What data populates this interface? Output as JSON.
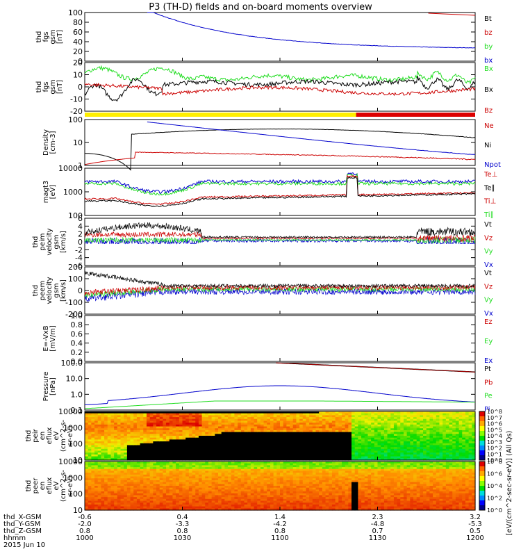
{
  "title": "P3 (TH-D) fields and on-board moments overview",
  "colors": {
    "black": "#000000",
    "red": "#cc0000",
    "green": "#22dd22",
    "blue": "#0000cc",
    "yellow": "#ffee00",
    "barred": "#dd0000"
  },
  "time_axis": {
    "row_labels": [
      "thd_X-GSM",
      "thd_Y-GSM",
      "thd_Z-GSM",
      "hhmm",
      "2015 Jun 10"
    ],
    "ticks": [
      {
        "x": "-0.6",
        "y": "-2.0",
        "z": "0.8",
        "hhmm": "1000"
      },
      {
        "x": "0.4",
        "y": "-3.3",
        "z": "0.8",
        "hhmm": "1030"
      },
      {
        "x": "1.4",
        "y": "-4.2",
        "z": "0.8",
        "hhmm": "1100"
      },
      {
        "x": "2.3",
        "y": "-4.8",
        "z": "0.7",
        "hhmm": "1130"
      },
      {
        "x": "3.2",
        "y": "-5.3",
        "z": "0.5",
        "hhmm": "1200"
      }
    ]
  },
  "colorbar_label": "[eV/(cm^2-sec-sr-eV)] (All Qs)",
  "colorbar_ticks": [
    "10^8",
    "10^7",
    "10^6",
    "10^5",
    "10^4",
    "10^3",
    "10^2",
    "10^1",
    "10^0"
  ],
  "colorbar_ticks2": [
    "10^8",
    "10^6",
    "10^4",
    "10^2",
    "10^0"
  ],
  "chart_data": [
    {
      "type": "line",
      "id": "fgs_gsm_mag",
      "ylabel": [
        "thd",
        "fgs",
        "gsm",
        "[nT]"
      ],
      "yticks": [
        "100",
        "80",
        "60",
        "40",
        "20",
        "0"
      ],
      "ylim": [
        0,
        100
      ],
      "legend": [
        {
          "name": "Bt",
          "color": "black"
        },
        {
          "name": "bz",
          "color": "red"
        },
        {
          "name": "by",
          "color": "green"
        },
        {
          "name": "bx",
          "color": "blue"
        }
      ]
    },
    {
      "type": "line",
      "id": "fgs_gsm_comp",
      "ylabel": [
        "thd",
        "fgs",
        "gsm",
        "[nT]"
      ],
      "yticks": [
        "20",
        "10",
        "0",
        "-10",
        "-20"
      ],
      "ylim": [
        -25,
        20
      ],
      "legend": [
        {
          "name": "Bx",
          "color": "green"
        },
        {
          "name": "Bx",
          "color": "black"
        },
        {
          "name": "Bz",
          "color": "red"
        }
      ]
    },
    {
      "type": "line",
      "id": "density",
      "ylog": true,
      "ylabel": [
        "Density",
        "[cm-3]"
      ],
      "yticks": [
        "100",
        "10",
        "1"
      ],
      "legend": [
        {
          "name": "Ne",
          "color": "red"
        },
        {
          "name": "Ni",
          "color": "black"
        },
        {
          "name": "Npot",
          "color": "blue"
        }
      ]
    },
    {
      "type": "line",
      "id": "temperature",
      "ylog": true,
      "ylabel": [
        "magt3",
        "[eV]"
      ],
      "yticks": [
        "10000",
        "1000",
        "100"
      ],
      "legend": [
        {
          "name": "Te⊥",
          "color": "red"
        },
        {
          "name": "Te∥",
          "color": "black"
        },
        {
          "name": "Ti⊥",
          "color": "red"
        },
        {
          "name": "Ti∥",
          "color": "green"
        }
      ]
    },
    {
      "type": "line",
      "id": "peim_velocity",
      "ylabel": [
        "thd",
        "peim",
        "velocity",
        "gsm",
        "[km/s]"
      ],
      "yticks": [
        "6",
        "4",
        "2",
        "0",
        "-2",
        "-4",
        "-6"
      ],
      "ylim": [
        -7,
        6
      ],
      "legend": [
        {
          "name": "Vt",
          "color": "black"
        },
        {
          "name": "Vz",
          "color": "red"
        },
        {
          "name": "Vy",
          "color": "green"
        },
        {
          "name": "Vx",
          "color": "blue"
        }
      ]
    },
    {
      "type": "line",
      "id": "peem_velocity",
      "ylabel": [
        "thd",
        "peem",
        "velocity",
        "gsm",
        "[km/s]"
      ],
      "yticks": [
        "200",
        "100",
        "0",
        "-100",
        "-200"
      ],
      "ylim": [
        -200,
        200
      ],
      "legend": [
        {
          "name": "Vt",
          "color": "black"
        },
        {
          "name": "Vz",
          "color": "red"
        },
        {
          "name": "Vy",
          "color": "green"
        },
        {
          "name": "Vx",
          "color": "blue"
        }
      ]
    },
    {
      "type": "line",
      "id": "efield",
      "ylabel": [
        "E=-VxB",
        "[mV/m]"
      ],
      "yticks": [
        "1.0",
        "0.8",
        "0.6",
        "0.4",
        "0.2",
        "0.0"
      ],
      "ylim": [
        0,
        1
      ],
      "legend": [
        {
          "name": "Ez",
          "color": "red"
        },
        {
          "name": "Ey",
          "color": "green"
        },
        {
          "name": "Ex",
          "color": "blue"
        }
      ]
    },
    {
      "type": "line",
      "id": "pressure",
      "ylog": true,
      "ylabel": [
        "Pressure",
        "[nPa]"
      ],
      "yticks": [
        "100.0",
        "10.0",
        "1.0",
        "0.1"
      ],
      "legend": [
        {
          "name": "Pt",
          "color": "black"
        },
        {
          "name": "Pb",
          "color": "red"
        },
        {
          "name": "Pe",
          "color": "green"
        },
        {
          "name": "Pi",
          "color": "blue"
        }
      ]
    },
    {
      "type": "heatmap",
      "id": "peir_en_eflux",
      "ylabel": [
        "thd",
        "peir",
        "en",
        "eflux",
        "eV",
        "(cm^2-s-",
        "sr-eV)"
      ],
      "yticks": [
        "10000",
        "1000",
        "100",
        "10"
      ]
    },
    {
      "type": "heatmap",
      "id": "peer_en_eflux",
      "ylabel": [
        "thd",
        "peer",
        "en",
        "eflux",
        "eV",
        "(cm^2-s-",
        "sr-eV)"
      ],
      "yticks": [
        "10000",
        "1000",
        "100",
        "10"
      ]
    }
  ]
}
